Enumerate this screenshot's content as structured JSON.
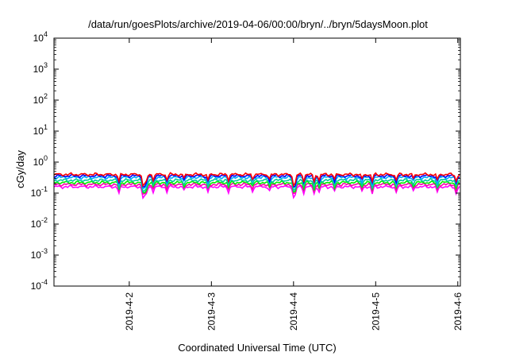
{
  "chart_data": {
    "type": "line",
    "title": "/data/run/goesPlots/archive/2019-04-06/00:00/bryn/../bryn/5daysMoon.plot",
    "xlabel": "Coordinated Universal Time (UTC)",
    "ylabel": "cGy/day",
    "y_scale": "log",
    "ylim": [
      0.0001,
      10000
    ],
    "y_ticks": [
      {
        "value": 0.0001,
        "base": "10",
        "exp": "-4"
      },
      {
        "value": 0.001,
        "base": "10",
        "exp": "-3"
      },
      {
        "value": 0.01,
        "base": "10",
        "exp": "-2"
      },
      {
        "value": 0.1,
        "base": "10",
        "exp": "-1"
      },
      {
        "value": 1,
        "base": "10",
        "exp": "0"
      },
      {
        "value": 10,
        "base": "10",
        "exp": "1"
      },
      {
        "value": 100,
        "base": "10",
        "exp": "2"
      },
      {
        "value": 1000,
        "base": "10",
        "exp": "3"
      },
      {
        "value": 10000,
        "base": "10",
        "exp": "4"
      }
    ],
    "xlim": [
      "2019-04-01 02:00",
      "2019-04-06 00:45"
    ],
    "x_ticks": [
      "2019-4-2",
      "2019-4-3",
      "2019-4-4",
      "2019-4-5",
      "2019-4-6"
    ],
    "grid": false,
    "legend": "none",
    "time_step_hours": 0.5,
    "x": [
      "2019-04-01 02:00",
      "2019-04-06 00:30"
    ],
    "dips": [
      {
        "x": "2019-04-01 21:00",
        "factor": 0.6
      },
      {
        "x": "2019-04-02 04:00",
        "factor": 0.5
      },
      {
        "x": "2019-04-02 04:30",
        "factor": 0.55
      },
      {
        "x": "2019-04-02 05:00",
        "factor": 0.6
      },
      {
        "x": "2019-04-02 07:00",
        "factor": 0.7
      },
      {
        "x": "2019-04-02 11:00",
        "factor": 0.7
      },
      {
        "x": "2019-04-02 16:00",
        "factor": 0.75
      },
      {
        "x": "2019-04-02 23:00",
        "factor": 0.65
      },
      {
        "x": "2019-04-03 05:00",
        "factor": 0.7
      },
      {
        "x": "2019-04-03 12:00",
        "factor": 0.75
      },
      {
        "x": "2019-04-03 17:00",
        "factor": 0.7
      },
      {
        "x": "2019-04-04 00:00",
        "factor": 0.5
      },
      {
        "x": "2019-04-04 00:30",
        "factor": 0.55
      },
      {
        "x": "2019-04-04 03:00",
        "factor": 0.65
      },
      {
        "x": "2019-04-04 06:00",
        "factor": 0.6
      },
      {
        "x": "2019-04-04 07:30",
        "factor": 0.65
      },
      {
        "x": "2019-04-04 12:00",
        "factor": 0.7
      },
      {
        "x": "2019-04-04 20:00",
        "factor": 0.7
      },
      {
        "x": "2019-04-04 23:00",
        "factor": 0.6
      },
      {
        "x": "2019-04-05 06:00",
        "factor": 0.65
      },
      {
        "x": "2019-04-05 11:00",
        "factor": 0.75
      },
      {
        "x": "2019-04-05 18:00",
        "factor": 0.65
      },
      {
        "x": "2019-04-05 23:30",
        "factor": 0.6
      }
    ],
    "series": [
      {
        "base": 0.4,
        "color": "#ff0000"
      },
      {
        "base": 0.36,
        "color": "#0000ff"
      },
      {
        "base": 0.32,
        "color": "#00aaff"
      },
      {
        "base": 0.26,
        "color": "#00cc99"
      },
      {
        "base": 0.22,
        "color": "#00ee00"
      },
      {
        "base": 0.19,
        "color": "#ff00aa"
      },
      {
        "base": 0.16,
        "color": "#ff00ff"
      }
    ]
  }
}
